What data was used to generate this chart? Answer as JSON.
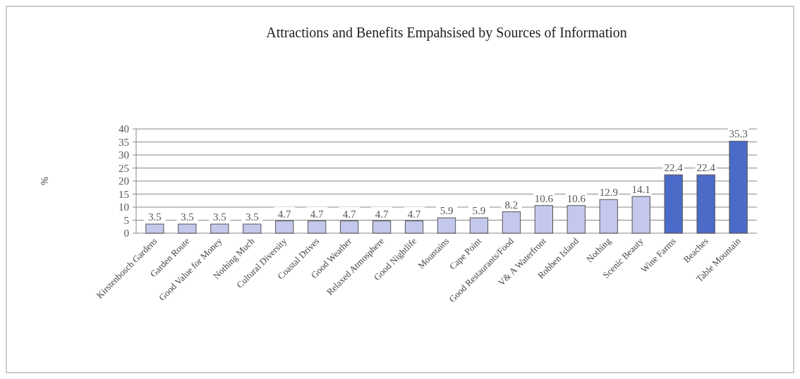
{
  "chart_data": {
    "type": "bar",
    "title": "Attractions and Benefits Empahsised by Sources of Information",
    "ylabel": "%",
    "categories": [
      "Kirstenbosch Gardens",
      "Garden Route",
      "Good Value for Money",
      "Nothing Much",
      "Cultural Diversity",
      "Coastal Drives",
      "Good Weather",
      "Relaxed Atmosphere",
      "Good Nightlife",
      "Mountains",
      "Cape Point",
      "Good Restaurants/Food",
      "V& A Waterfront",
      "Robben Island",
      "Nothing",
      "Scenic Beauty",
      "Wine Farms",
      "Beaches",
      "Table Mountain"
    ],
    "values": [
      3.5,
      3.5,
      3.5,
      3.5,
      4.7,
      4.7,
      4.7,
      4.7,
      4.7,
      5.9,
      5.9,
      8.2,
      10.6,
      10.6,
      12.9,
      14.1,
      22.4,
      22.4,
      35.3
    ],
    "colors": [
      "#c4c8ec",
      "#c4c8ec",
      "#c4c8ec",
      "#c4c8ec",
      "#c4c8ec",
      "#c4c8ec",
      "#c4c8ec",
      "#c4c8ec",
      "#c4c8ec",
      "#c4c8ec",
      "#c4c8ec",
      "#c4c8ec",
      "#c4c8ec",
      "#c4c8ec",
      "#c4c8ec",
      "#c4c8ec",
      "#4a6cc8",
      "#4a6cc8",
      "#4a6cc8"
    ],
    "ylim": [
      0,
      40
    ],
    "yticks": [
      0,
      5,
      10,
      15,
      20,
      25,
      30,
      35,
      40
    ],
    "grid": "y",
    "data_labels": true
  }
}
